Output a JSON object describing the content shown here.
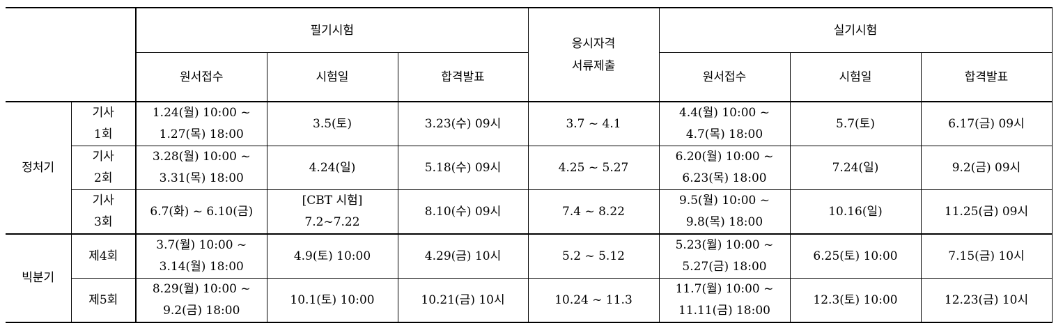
{
  "table": {
    "header": {
      "written": "필기시험",
      "documents": [
        "응시자격",
        "서류제출"
      ],
      "practical": "실기시험",
      "sub": [
        "원서접수",
        "시험일",
        "합격발표",
        "원서접수",
        "시험일",
        "합격발표"
      ]
    },
    "groups": [
      {
        "name": "정처기",
        "rows": [
          {
            "label": [
              "기사",
              "1회"
            ],
            "cells": [
              [
                "1.24(월) 10:00 ~",
                "1.27(목) 18:00"
              ],
              [
                "3.5(토)"
              ],
              [
                "3.23(수) 09시"
              ],
              [
                "3.7 ~ 4.1"
              ],
              [
                "4.4(월) 10:00 ~",
                "4.7(목) 18:00"
              ],
              [
                "5.7(토)"
              ],
              [
                "6.17(금) 09시"
              ]
            ]
          },
          {
            "label": [
              "기사",
              "2회"
            ],
            "cells": [
              [
                "3.28(월) 10:00 ~",
                "3.31(목) 18:00"
              ],
              [
                "4.24(일)"
              ],
              [
                "5.18(수) 09시"
              ],
              [
                "4.25 ~ 5.27"
              ],
              [
                "6.20(월) 10:00 ~",
                "6.23(목) 18:00"
              ],
              [
                "7.24(일)"
              ],
              [
                "9.2(금) 09시"
              ]
            ]
          },
          {
            "label": [
              "기사",
              "3회"
            ],
            "cells": [
              [
                "6.7(화) ~ 6.10(금)"
              ],
              [
                "[CBT 시험]",
                "7.2~7.22"
              ],
              [
                "8.10(수) 09시"
              ],
              [
                "7.4 ~ 8.22"
              ],
              [
                "9.5(월) 10:00 ~",
                "9.8(목) 18:00"
              ],
              [
                "10.16(일)"
              ],
              [
                "11.25(금) 09시"
              ]
            ]
          }
        ]
      },
      {
        "name": "빅분기",
        "rows": [
          {
            "label": [
              "제4회"
            ],
            "cells": [
              [
                "3.7(월) 10:00 ~",
                "3.14(월) 18:00"
              ],
              [
                "4.9(토) 10:00"
              ],
              [
                "4.29(금) 10시"
              ],
              [
                "5.2 ~ 5.12"
              ],
              [
                "5.23(월) 10:00 ~",
                "5.27(금) 18:00"
              ],
              [
                "6.25(토) 10:00"
              ],
              [
                "7.15(금) 10시"
              ]
            ]
          },
          {
            "label": [
              "제5회"
            ],
            "cells": [
              [
                "8.29(월) 10:00 ~",
                "9.2(금) 18:00"
              ],
              [
                "10.1(토) 10:00"
              ],
              [
                "10.21(금) 10시"
              ],
              [
                "10.24 ~ 11.3"
              ],
              [
                "11.7(월) 10:00 ~",
                "11.11(금) 18:00"
              ],
              [
                "12.3(토) 10:00"
              ],
              [
                "12.23(금) 10시"
              ]
            ]
          }
        ]
      }
    ]
  }
}
